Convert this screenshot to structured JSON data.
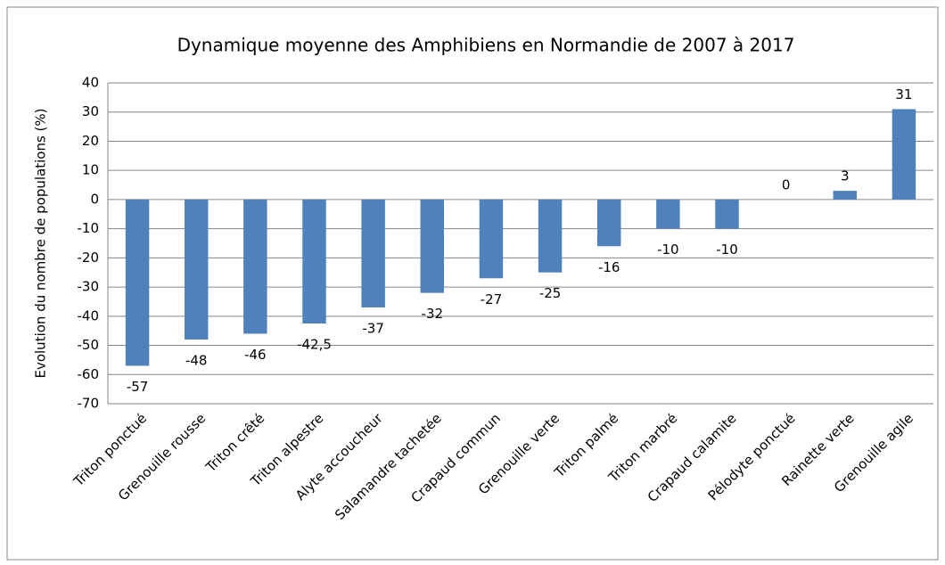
{
  "chart_data": {
    "type": "bar",
    "title": "Dynamique moyenne  des Amphibiens  en Normandie de 2007 à 2017",
    "y_label": "Evolution du nombre de populations  (%)",
    "categories": [
      "Triton ponctué",
      "Grenouille rousse",
      "Triton crêté",
      "Triton alpestre",
      "Alyte accoucheur",
      "Salamandre tachetée",
      "Crapaud commun",
      "Grenouille verte",
      "Triton palmé",
      "Triton marbré",
      "Crapaud calamite",
      "Pélodyte ponctué",
      "Rainette verte",
      "Grenouille agile"
    ],
    "values": [
      -57,
      -48,
      -46,
      -42.5,
      -37,
      -32,
      -27,
      -25,
      -16,
      -10,
      -10,
      0,
      3,
      31
    ],
    "value_labels": [
      "-57",
      "-48",
      "-46",
      "-42,5",
      "-37",
      "-32",
      "-27",
      "-25",
      "-16",
      "-10",
      "-10",
      "0",
      "3",
      "31"
    ],
    "color": "#4f81bd",
    "ylim": [
      -70,
      40
    ],
    "yticks": [
      -70,
      -60,
      -50,
      -40,
      -30,
      -20,
      -10,
      0,
      10,
      20,
      30,
      40
    ],
    "grid": true
  }
}
